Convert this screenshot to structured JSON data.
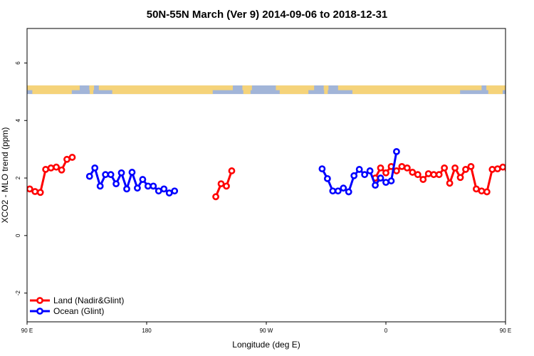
{
  "chart_data": {
    "type": "line",
    "title": "50N-55N March (Ver 9)   2014-09-06 to 2018-12-31",
    "xlabel": "Longitude (deg E)",
    "ylabel": "XCO2 - MLO trend (ppm)",
    "xlim": [
      90,
      450
    ],
    "ylim": [
      -3,
      7.2
    ],
    "x_ticks": [
      {
        "value": 90,
        "label": "90 E"
      },
      {
        "value": 180,
        "label": "180"
      },
      {
        "value": 270,
        "label": "90 W"
      },
      {
        "value": 360,
        "label": "0"
      },
      {
        "value": 450,
        "label": "90 E"
      },
      {
        "value": 540,
        "label": "180"
      }
    ],
    "y_ticks": [
      {
        "value": -2,
        "label": "-2"
      },
      {
        "value": 0,
        "label": "0"
      },
      {
        "value": 2,
        "label": "2"
      },
      {
        "value": 4,
        "label": "4"
      },
      {
        "value": 6,
        "label": "6"
      }
    ],
    "legend": {
      "position": "bottom-left"
    },
    "map_strip": {
      "y_range": [
        4.92,
        5.22
      ],
      "ocean_color": "#a2b5d8",
      "land_color": "#f5d37a"
    },
    "series": [
      {
        "name": "Land (Nadir&Glint)",
        "color": "#ff0000",
        "segments": [
          [
            [
              92,
              1.62
            ],
            [
              96,
              1.53
            ],
            [
              100,
              1.5
            ],
            [
              104,
              2.3
            ],
            [
              108,
              2.35
            ],
            [
              112,
              2.38
            ],
            [
              116,
              2.28
            ],
            [
              120,
              2.65
            ],
            [
              124,
              2.72
            ]
          ],
          [
            [
              232,
              1.35
            ],
            [
              236,
              1.8
            ],
            [
              240,
              1.72
            ],
            [
              244,
              2.25
            ]
          ],
          [
            [
              352,
              2.0
            ],
            [
              356,
              2.35
            ],
            [
              360,
              2.18
            ],
            [
              364,
              2.4
            ],
            [
              368,
              2.25
            ],
            [
              372,
              2.4
            ],
            [
              376,
              2.35
            ],
            [
              380,
              2.2
            ],
            [
              384,
              2.12
            ],
            [
              388,
              1.95
            ],
            [
              392,
              2.15
            ],
            [
              396,
              2.12
            ],
            [
              400,
              2.12
            ],
            [
              404,
              2.35
            ],
            [
              408,
              1.82
            ],
            [
              412,
              2.35
            ],
            [
              416,
              2.02
            ],
            [
              420,
              2.3
            ],
            [
              424,
              2.4
            ],
            [
              428,
              1.62
            ],
            [
              432,
              1.55
            ],
            [
              436,
              1.52
            ],
            [
              440,
              2.3
            ],
            [
              444,
              2.32
            ],
            [
              448,
              2.38
            ],
            [
              452,
              2.28
            ],
            [
              456,
              2.65
            ],
            [
              460,
              2.72
            ]
          ]
        ]
      },
      {
        "name": "Ocean (Glint)",
        "color": "#0000ff",
        "segments": [
          [
            [
              137,
              2.06
            ],
            [
              141,
              2.35
            ],
            [
              145,
              1.72
            ],
            [
              149,
              2.12
            ],
            [
              153,
              2.12
            ],
            [
              157,
              1.8
            ],
            [
              161,
              2.18
            ],
            [
              165,
              1.62
            ],
            [
              169,
              2.2
            ],
            [
              173,
              1.65
            ],
            [
              177,
              1.95
            ],
            [
              181,
              1.72
            ],
            [
              185,
              1.72
            ],
            [
              189,
              1.55
            ],
            [
              193,
              1.62
            ],
            [
              197,
              1.48
            ],
            [
              201,
              1.55
            ]
          ],
          [
            [
              312,
              2.32
            ],
            [
              316,
              1.98
            ],
            [
              320,
              1.55
            ],
            [
              324,
              1.55
            ],
            [
              328,
              1.65
            ],
            [
              332,
              1.52
            ],
            [
              336,
              2.08
            ],
            [
              340,
              2.3
            ],
            [
              344,
              2.12
            ],
            [
              348,
              2.25
            ],
            [
              352,
              1.75
            ],
            [
              356,
              2.0
            ],
            [
              360,
              1.85
            ],
            [
              364,
              1.9
            ],
            [
              368,
              2.92
            ]
          ],
          [
            [
              473,
              2.06
            ],
            [
              477,
              2.35
            ],
            [
              481,
              1.72
            ],
            [
              485,
              2.12
            ],
            [
              489,
              2.12
            ],
            [
              493,
              1.8
            ],
            [
              497,
              2.18
            ]
          ]
        ]
      }
    ]
  }
}
